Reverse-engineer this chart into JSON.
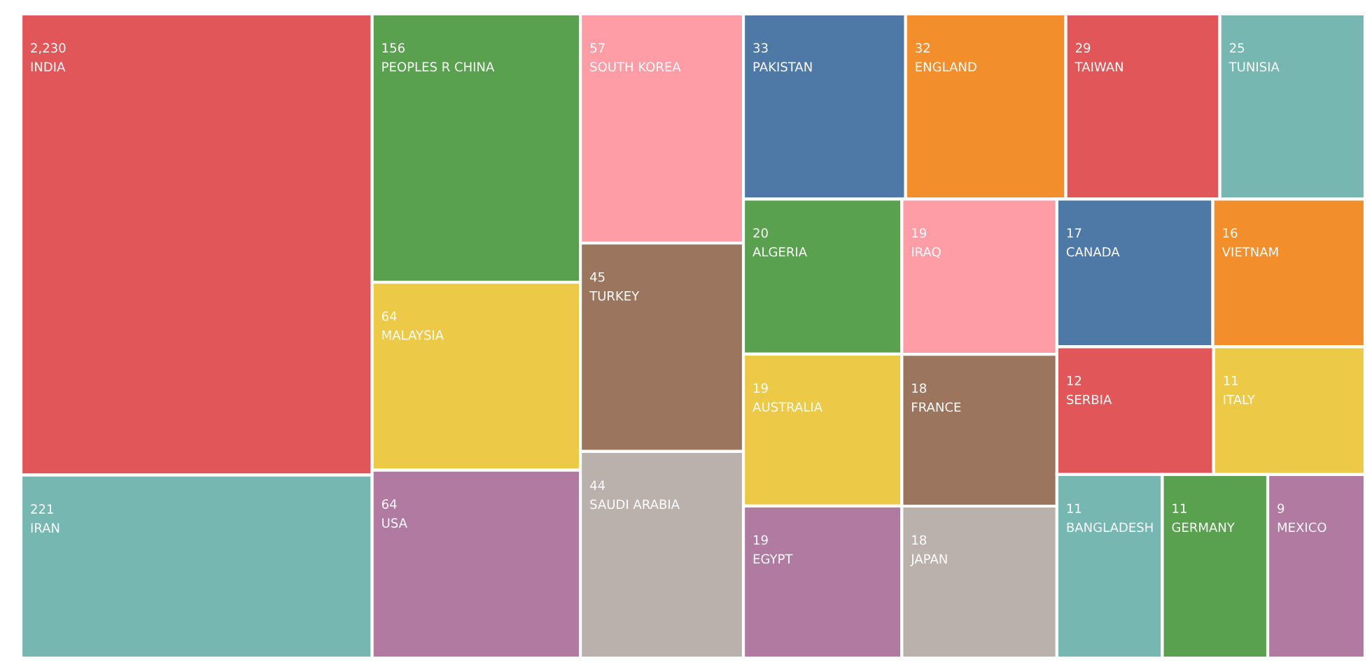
{
  "chart_data": {
    "type": "other",
    "categories": [
      "INDIA",
      "IRAN",
      "PEOPLES R CHINA",
      "MALAYSIA",
      "USA",
      "SOUTH KOREA",
      "TURKEY",
      "SAUDI ARABIA",
      "PAKISTAN",
      "ENGLAND",
      "TAIWAN",
      "TUNISIA",
      "ALGERIA",
      "AUSTRALIA",
      "EGYPT",
      "IRAQ",
      "FRANCE",
      "JAPAN",
      "CANADA",
      "VIETNAM",
      "SERBIA",
      "ITALY",
      "BANGLADESH",
      "GERMANY",
      "MEXICO"
    ],
    "values": [
      2230,
      221,
      156,
      64,
      64,
      57,
      45,
      44,
      33,
      32,
      29,
      25,
      20,
      19,
      19,
      19,
      18,
      18,
      17,
      16,
      12,
      11,
      11,
      11,
      9
    ],
    "value_labels": [
      "2,230",
      "221",
      "156",
      "64",
      "64",
      "57",
      "45",
      "44",
      "33",
      "32",
      "29",
      "25",
      "20",
      "19",
      "19",
      "19",
      "18",
      "18",
      "17",
      "16",
      "12",
      "11",
      "11",
      "11",
      "9"
    ],
    "colors": [
      "#e15759",
      "#76b7b2",
      "#59a14f",
      "#edc948",
      "#b07aa1",
      "#ff9da7",
      "#9c755f",
      "#bab0ac",
      "#4e79a7",
      "#f28e2b",
      "#e15759",
      "#76b7b2",
      "#59a14f",
      "#edc948",
      "#b07aa1",
      "#ff9da7",
      "#9c755f",
      "#bab0ac",
      "#4e79a7",
      "#f28e2b",
      "#e15759",
      "#edc948",
      "#76b7b2",
      "#59a14f",
      "#b07aa1"
    ]
  }
}
